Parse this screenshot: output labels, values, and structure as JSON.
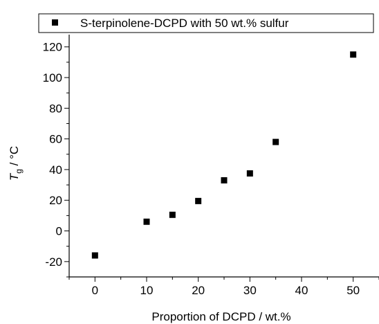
{
  "chart_data": {
    "type": "scatter",
    "xlabel": "Proportion of DCPD / wt.%",
    "ylabel": {
      "main": "T",
      "subscript": "g",
      "unit": " / °C"
    },
    "xlim": [
      -5,
      55
    ],
    "ylim": [
      -30,
      128
    ],
    "x_ticks": [
      0,
      10,
      20,
      30,
      40,
      50
    ],
    "y_ticks": [
      -20,
      0,
      20,
      40,
      60,
      80,
      100,
      120
    ],
    "grid": false,
    "legend": "top",
    "series": [
      {
        "name": "S-terpinolene-DCPD with 50 wt.% sulfur",
        "color": "#000000",
        "marker": "square",
        "x": [
          0,
          10,
          15,
          20,
          25,
          30,
          35,
          50
        ],
        "y": [
          -16,
          6,
          10.5,
          19.5,
          33,
          37.5,
          58,
          115
        ]
      }
    ]
  }
}
